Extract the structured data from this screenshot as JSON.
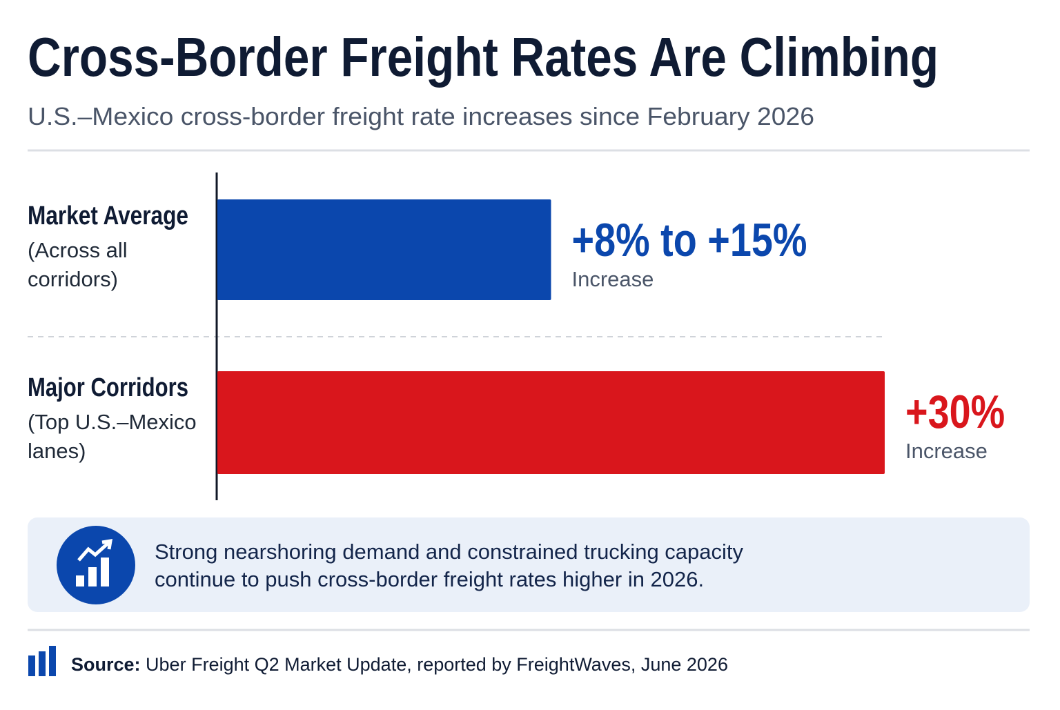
{
  "chart_data": {
    "type": "bar",
    "orientation": "horizontal",
    "title": "Cross-Border Freight Rates Are Climbing",
    "subtitle": "U.S.–Mexico cross-border freight rate increases since February 2026",
    "categories": [
      "Market Average",
      "Major Corridors"
    ],
    "category_notes": [
      [
        "(Across all",
        "corridors)"
      ],
      [
        "(Top U.S.–Mexico",
        "lanes)"
      ]
    ],
    "values": [
      15,
      30
    ],
    "value_labels": [
      "+8% to +15%",
      "+30%"
    ],
    "value_sublabels": [
      "Increase",
      "Increase"
    ],
    "colors": [
      "#0b47ad",
      "#d9161c"
    ],
    "callout": [
      "Strong nearshoring demand and constrained trucking capacity",
      "continue to push cross-border freight rates higher in 2026."
    ],
    "source_label": "Source:",
    "source_text": "Uber Freight Q2 Market Update, reported by FreightWaves, June 2026"
  }
}
